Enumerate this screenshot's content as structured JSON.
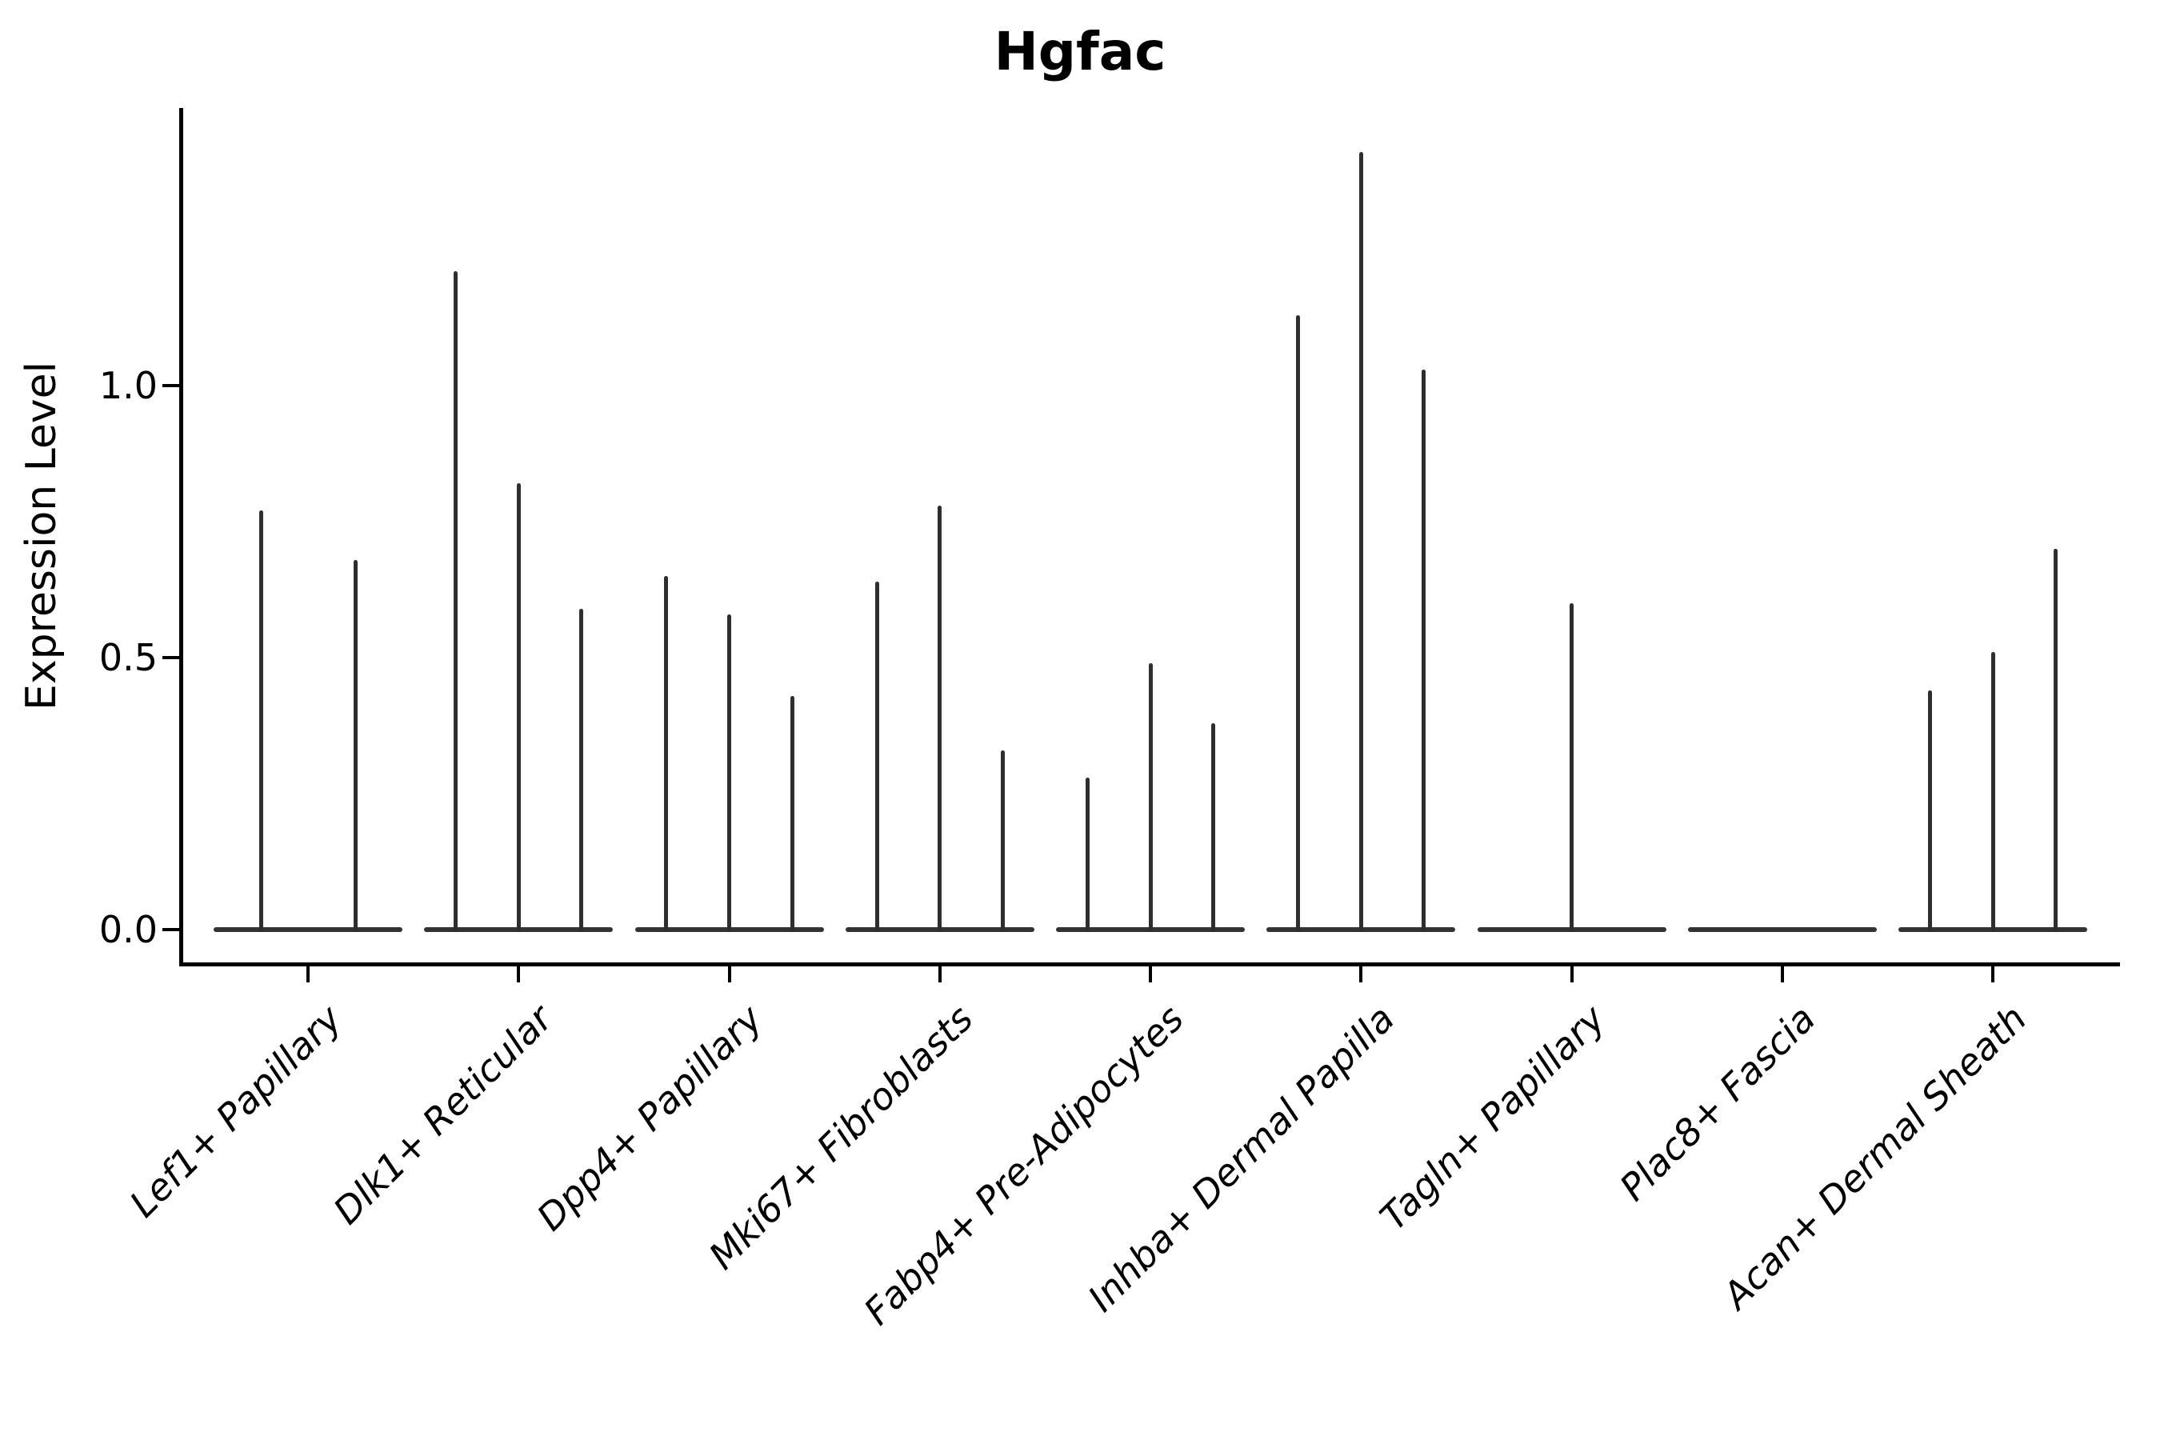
{
  "chart_data": {
    "type": "violin",
    "title": "Hgfac",
    "xlabel": "",
    "ylabel": "Expression Level",
    "ytick_labels": [
      "0.0",
      "0.5",
      "1.0"
    ],
    "ytick_values": [
      0.0,
      0.5,
      1.0
    ],
    "ylim": [
      -0.065,
      1.51
    ],
    "grid": false,
    "legend": "none",
    "colors": {
      "violin_line": "#2e2e2e",
      "axis": "#000000",
      "background": "#ffffff"
    },
    "categories": [
      "Lef1+ Papillary",
      "Dlk1+ Reticular",
      "Dpp4+ Papillary",
      "Mki67+ Fibroblasts",
      "Fabp4+ Pre-Adipocytes",
      "Inhba+ Dermal Papilla",
      "Tagln+ Papillary",
      "Plac8+ Fascia",
      "Acan+ Dermal Sheath"
    ],
    "violin_peaks": [
      [
        0.77,
        0.68
      ],
      [
        1.21,
        0.82,
        0.59
      ],
      [
        0.65,
        0.58,
        0.43
      ],
      [
        0.64,
        0.78,
        0.33
      ],
      [
        0.28,
        0.49,
        0.38
      ],
      [
        1.13,
        1.43,
        1.03
      ],
      [
        0.6
      ],
      [],
      [
        0.44,
        0.51,
        0.7
      ]
    ]
  }
}
